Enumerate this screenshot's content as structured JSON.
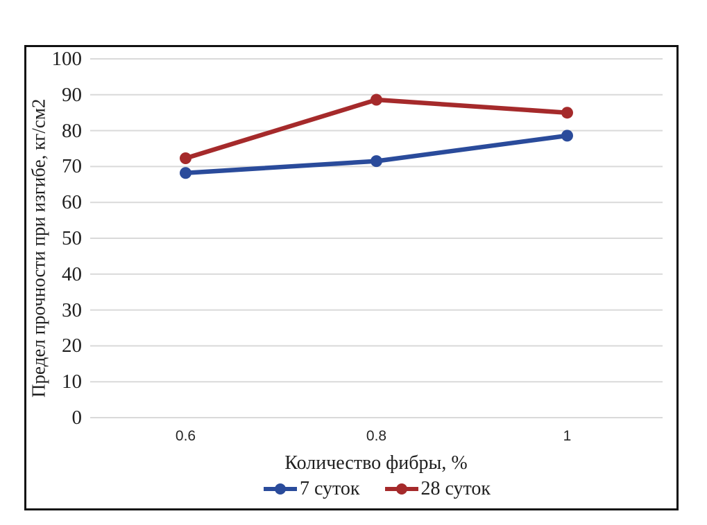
{
  "chart_data": {
    "type": "line",
    "categories": [
      "0.6",
      "0.8",
      "1"
    ],
    "series": [
      {
        "name": "7 суток",
        "color": "#2A4B9B",
        "values": [
          68.2,
          71.5,
          78.6
        ]
      },
      {
        "name": "28 суток",
        "color": "#A52A2B",
        "values": [
          72.3,
          88.6,
          85.0
        ]
      }
    ],
    "x_axis_title": "Количество фибры, %",
    "y_axis_title": "Предел прочности при изгибе, кг/см2",
    "y_ticks": [
      0,
      10,
      20,
      30,
      40,
      50,
      60,
      70,
      80,
      90,
      100
    ],
    "ylim": [
      0,
      100
    ],
    "grid": "horizontal",
    "legend_position": "bottom",
    "colors": {
      "gridline": "#D9D9D9",
      "frame_border": "#111111",
      "text": "#1F1F1F",
      "background": "#FFFFFF"
    }
  }
}
